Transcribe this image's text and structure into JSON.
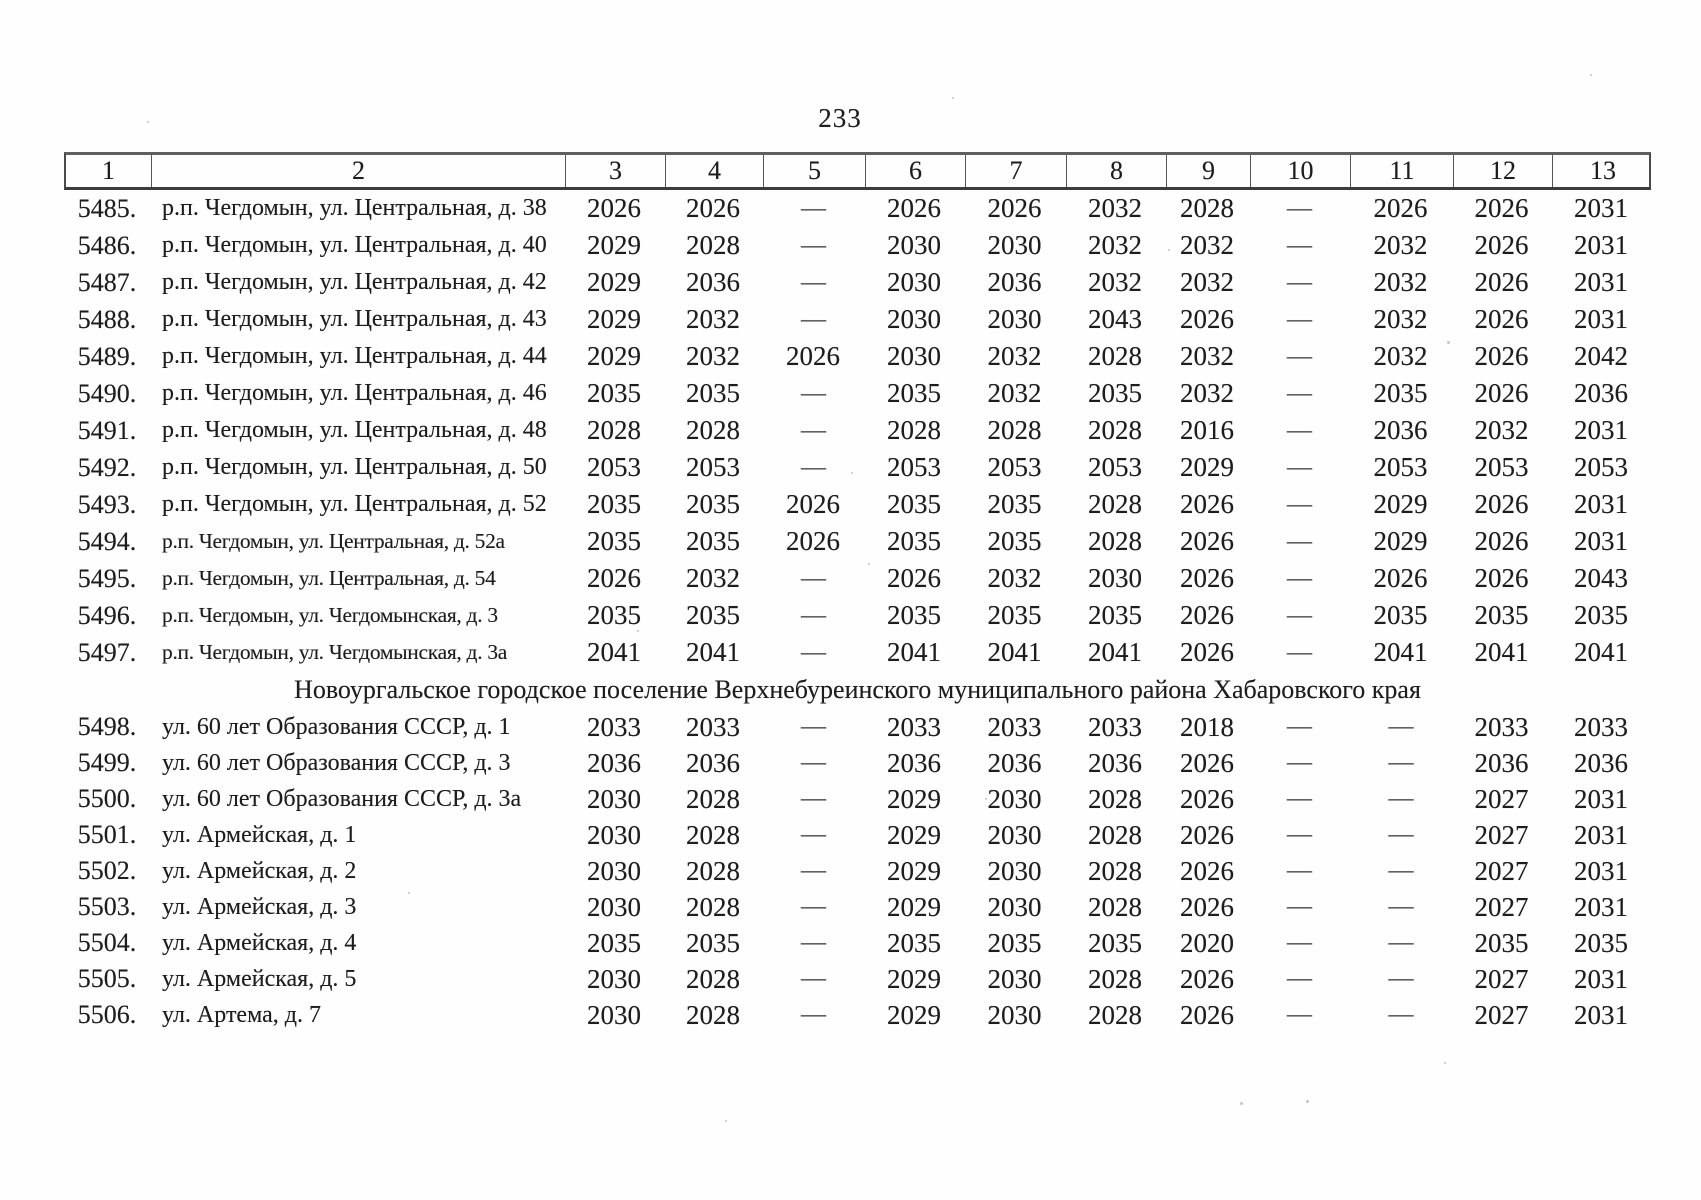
{
  "page_number": "233",
  "table": {
    "headers": [
      "1",
      "2",
      "3",
      "4",
      "5",
      "6",
      "7",
      "8",
      "9",
      "10",
      "11",
      "12",
      "13"
    ],
    "rows": [
      {
        "num": "5485.",
        "address": "р.п. Чегдомын, ул. Центральная, д. 38",
        "values": [
          "2026",
          "2026",
          "—",
          "2026",
          "2026",
          "2032",
          "2028",
          "—",
          "2026",
          "2026",
          "2031"
        ]
      },
      {
        "num": "5486.",
        "address": "р.п. Чегдомын, ул. Центральная, д. 40",
        "values": [
          "2029",
          "2028",
          "—",
          "2030",
          "2030",
          "2032",
          "2032",
          "—",
          "2032",
          "2026",
          "2031"
        ]
      },
      {
        "num": "5487.",
        "address": "р.п. Чегдомын, ул. Центральная, д. 42",
        "values": [
          "2029",
          "2036",
          "—",
          "2030",
          "2036",
          "2032",
          "2032",
          "—",
          "2032",
          "2026",
          "2031"
        ]
      },
      {
        "num": "5488.",
        "address": "р.п. Чегдомын, ул. Центральная, д. 43",
        "values": [
          "2029",
          "2032",
          "—",
          "2030",
          "2030",
          "2043",
          "2026",
          "—",
          "2032",
          "2026",
          "2031"
        ]
      },
      {
        "num": "5489.",
        "address": "р.п. Чегдомын, ул. Центральная, д. 44",
        "values": [
          "2029",
          "2032",
          "2026",
          "2030",
          "2032",
          "2028",
          "2032",
          "—",
          "2032",
          "2026",
          "2042"
        ]
      },
      {
        "num": "5490.",
        "address": "р.п. Чегдомын, ул. Центральная, д. 46",
        "values": [
          "2035",
          "2035",
          "—",
          "2035",
          "2032",
          "2035",
          "2032",
          "—",
          "2035",
          "2026",
          "2036"
        ]
      },
      {
        "num": "5491.",
        "address": "р.п. Чегдомын, ул. Центральная, д. 48",
        "values": [
          "2028",
          "2028",
          "—",
          "2028",
          "2028",
          "2028",
          "2016",
          "—",
          "2036",
          "2032",
          "2031"
        ]
      },
      {
        "num": "5492.",
        "address": "р.п. Чегдомын, ул. Центральная, д. 50",
        "values": [
          "2053",
          "2053",
          "—",
          "2053",
          "2053",
          "2053",
          "2029",
          "—",
          "2053",
          "2053",
          "2053"
        ]
      },
      {
        "num": "5493.",
        "address": "р.п. Чегдомын, ул. Центральная, д. 52",
        "values": [
          "2035",
          "2035",
          "2026",
          "2035",
          "2035",
          "2028",
          "2026",
          "—",
          "2029",
          "2026",
          "2031"
        ]
      },
      {
        "num": "5494.",
        "address": "р.п. Чегдомын, ул. Центральная, д. 52а",
        "values": [
          "2035",
          "2035",
          "2026",
          "2035",
          "2035",
          "2028",
          "2026",
          "—",
          "2029",
          "2026",
          "2031"
        ]
      },
      {
        "num": "5495.",
        "address": "р.п. Чегдомын, ул. Центральная, д. 54",
        "values": [
          "2026",
          "2032",
          "—",
          "2026",
          "2032",
          "2030",
          "2026",
          "—",
          "2026",
          "2026",
          "2043"
        ]
      },
      {
        "num": "5496.",
        "address": "р.п. Чегдомын, ул. Чегдомынская, д. 3",
        "values": [
          "2035",
          "2035",
          "—",
          "2035",
          "2035",
          "2035",
          "2026",
          "—",
          "2035",
          "2035",
          "2035"
        ]
      },
      {
        "num": "5497.",
        "address": "р.п. Чегдомын, ул. Чегдомынская, д. 3а",
        "values": [
          "2041",
          "2041",
          "—",
          "2041",
          "2041",
          "2041",
          "2026",
          "—",
          "2041",
          "2041",
          "2041"
        ]
      },
      {
        "section": "Новоургальское городское поселение Верхнебуреинского муниципального района Хабаровского края"
      },
      {
        "num": "5498.",
        "address": "ул. 60 лет Образования СССР, д. 1",
        "values": [
          "2033",
          "2033",
          "—",
          "2033",
          "2033",
          "2033",
          "2018",
          "—",
          "—",
          "2033",
          "2033"
        ]
      },
      {
        "num": "5499.",
        "address": "ул. 60 лет Образования СССР, д. 3",
        "values": [
          "2036",
          "2036",
          "—",
          "2036",
          "2036",
          "2036",
          "2026",
          "—",
          "—",
          "2036",
          "2036"
        ]
      },
      {
        "num": "5500.",
        "address": "ул. 60 лет Образования СССР, д. 3а",
        "values": [
          "2030",
          "2028",
          "—",
          "2029",
          "2030",
          "2028",
          "2026",
          "—",
          "—",
          "2027",
          "2031"
        ]
      },
      {
        "num": "5501.",
        "address": "ул. Армейская, д. 1",
        "values": [
          "2030",
          "2028",
          "—",
          "2029",
          "2030",
          "2028",
          "2026",
          "—",
          "—",
          "2027",
          "2031"
        ]
      },
      {
        "num": "5502.",
        "address": "ул. Армейская, д. 2",
        "values": [
          "2030",
          "2028",
          "—",
          "2029",
          "2030",
          "2028",
          "2026",
          "—",
          "—",
          "2027",
          "2031"
        ]
      },
      {
        "num": "5503.",
        "address": "ул. Армейская, д. 3",
        "values": [
          "2030",
          "2028",
          "—",
          "2029",
          "2030",
          "2028",
          "2026",
          "—",
          "—",
          "2027",
          "2031"
        ]
      },
      {
        "num": "5504.",
        "address": "ул. Армейская, д. 4",
        "values": [
          "2035",
          "2035",
          "—",
          "2035",
          "2035",
          "2035",
          "2020",
          "—",
          "—",
          "2035",
          "2035"
        ]
      },
      {
        "num": "5505.",
        "address": "ул. Армейская, д. 5",
        "values": [
          "2030",
          "2028",
          "—",
          "2029",
          "2030",
          "2028",
          "2026",
          "—",
          "—",
          "2027",
          "2031"
        ]
      },
      {
        "num": "5506.",
        "address": "ул. Артема, д. 7",
        "values": [
          "2030",
          "2028",
          "—",
          "2029",
          "2030",
          "2028",
          "2026",
          "—",
          "—",
          "2027",
          "2031"
        ]
      }
    ]
  }
}
